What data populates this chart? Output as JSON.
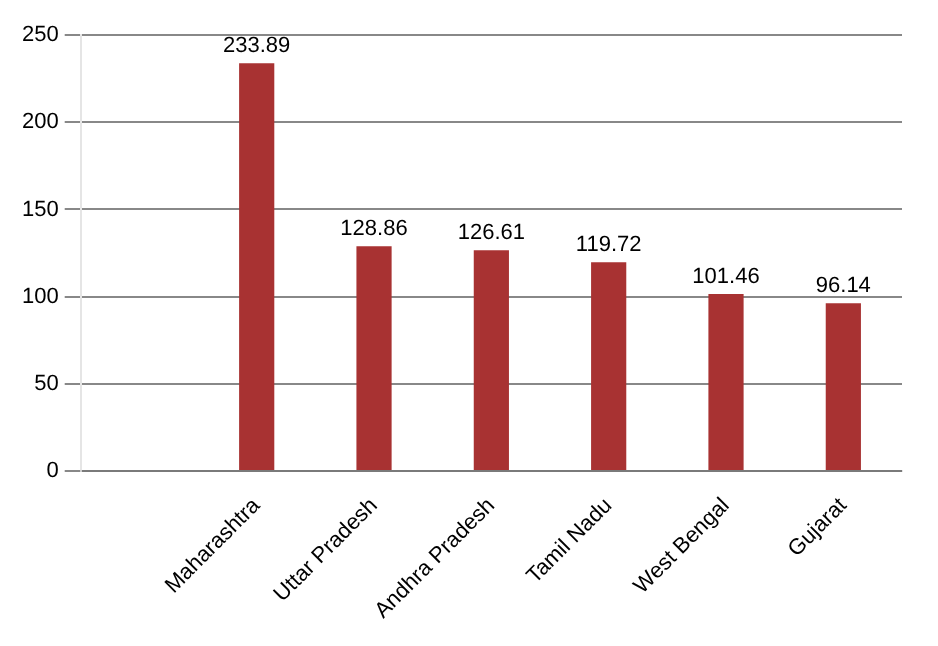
{
  "chart_data": {
    "type": "bar",
    "categories": [
      null,
      "Maharashtra",
      "Uttar Pradesh",
      "Andhra Pradesh",
      "Tamil Nadu",
      "West Bengal",
      "Gujarat"
    ],
    "values": [
      null,
      233.89,
      128.86,
      126.61,
      119.72,
      101.46,
      96.14
    ],
    "color": "#a83232",
    "ylim": [
      0,
      250
    ],
    "yticks": [
      0,
      50,
      100,
      150,
      200,
      250
    ],
    "grid": "y",
    "data_labels": true,
    "legend": false
  }
}
